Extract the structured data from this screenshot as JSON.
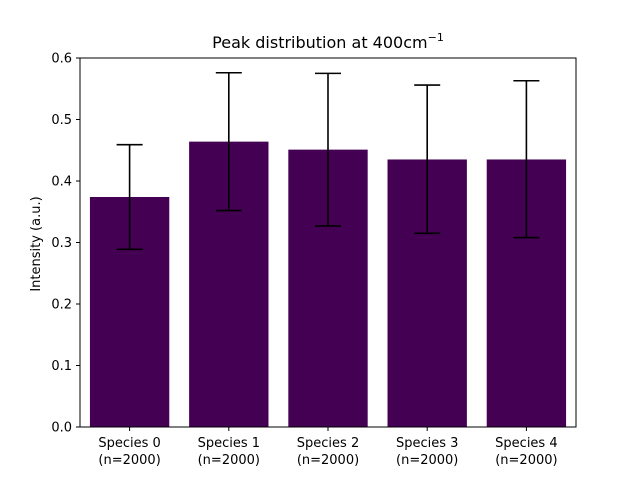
{
  "chart_data": {
    "type": "bar",
    "title": "Peak distribution at 400cm",
    "title_superscript": "−1",
    "xlabel": "",
    "ylabel": "Intensity (a.u.)",
    "categories": [
      "Species 0",
      "Species 1",
      "Species 2",
      "Species 3",
      "Species 4"
    ],
    "category_sublabels": [
      "(n=2000)",
      "(n=2000)",
      "(n=2000)",
      "(n=2000)",
      "(n=2000)"
    ],
    "values": [
      0.374,
      0.464,
      0.451,
      0.435,
      0.435
    ],
    "error_low": [
      0.289,
      0.352,
      0.327,
      0.315,
      0.308
    ],
    "error_high": [
      0.459,
      0.576,
      0.575,
      0.556,
      0.563
    ],
    "ylim": [
      0,
      0.6
    ],
    "yticks": [
      0.0,
      0.1,
      0.2,
      0.3,
      0.4,
      0.5,
      0.6
    ],
    "ytick_labels": [
      "0.0",
      "0.1",
      "0.2",
      "0.3",
      "0.4",
      "0.5",
      "0.6"
    ],
    "grid": false,
    "bar_color": "#440154",
    "error_color": "#000000"
  }
}
